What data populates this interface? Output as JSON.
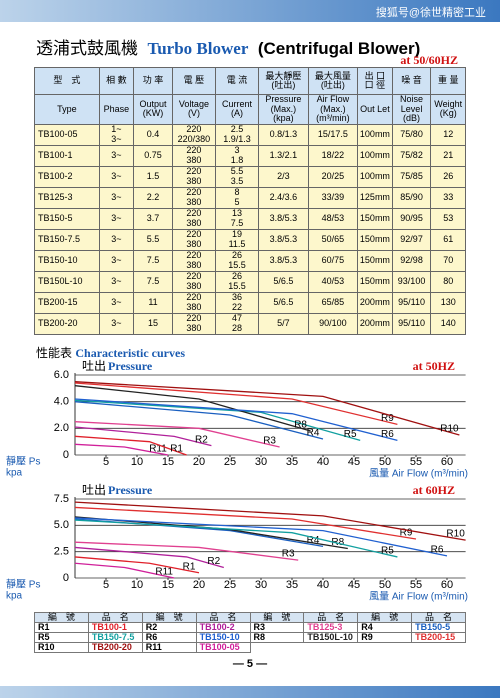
{
  "header": {
    "watermark": "搜狐号@徐世精密工业",
    "title_cn": "透浦式鼓風機",
    "title_en": "Turbo Blower",
    "title_en2": "(Centrifugal Blower)",
    "frequency": "at 50/60HZ"
  },
  "spec_table": {
    "header_cn": [
      "型　式",
      "相 數",
      "功 率",
      "電 壓",
      "電 流",
      "最大靜壓\n(吐出)",
      "最大風量\n(吐出)",
      "出 口\n口 徑",
      "噪 音",
      "重 量"
    ],
    "header_en": [
      "Type",
      "Phase",
      "Output\n(KW)",
      "Voltage\n(V)",
      "Current\n(A)",
      "Pressure (Max.)\n(kpa)",
      "Air Flow (Max.)\n(m³/min)",
      "Out Let",
      "Noise Level\n(dB)",
      "Weight\n(Kg)"
    ],
    "rows": [
      [
        "TB100-05",
        "1~\n3~",
        "0.4",
        "220\n220/380",
        "2.5\n1.9/1.3",
        "0.8/1.3",
        "15/17.5",
        "100mm",
        "75/80",
        "12"
      ],
      [
        "TB100-1",
        "3~",
        "0.75",
        "220\n380",
        "3\n1.8",
        "1.3/2.1",
        "18/22",
        "100mm",
        "75/82",
        "21"
      ],
      [
        "TB100-2",
        "3~",
        "1.5",
        "220\n380",
        "5.5\n3.5",
        "2/3",
        "20/25",
        "100mm",
        "75/85",
        "26"
      ],
      [
        "TB125-3",
        "3~",
        "2.2",
        "220\n380",
        "8\n5",
        "2.4/3.6",
        "33/39",
        "125mm",
        "85/90",
        "33"
      ],
      [
        "TB150-5",
        "3~",
        "3.7",
        "220\n380",
        "13\n7.5",
        "3.8/5.3",
        "48/53",
        "150mm",
        "90/95",
        "53"
      ],
      [
        "TB150-7.5",
        "3~",
        "5.5",
        "220\n380",
        "19\n11.5",
        "3.8/5.3",
        "50/65",
        "150mm",
        "92/97",
        "61"
      ],
      [
        "TB150-10",
        "3~",
        "7.5",
        "220\n380",
        "26\n15.5",
        "3.8/5.3",
        "60/75",
        "150mm",
        "92/98",
        "70"
      ],
      [
        "TB150L-10",
        "3~",
        "7.5",
        "220\n380",
        "26\n15.5",
        "5/6.5",
        "40/53",
        "150mm",
        "93/100",
        "80"
      ],
      [
        "TB200-15",
        "3~",
        "11",
        "220\n380",
        "36\n22",
        "5/6.5",
        "65/85",
        "200mm",
        "95/110",
        "130"
      ],
      [
        "TB200-20",
        "3~",
        "15",
        "220\n380",
        "47\n28",
        "5/7",
        "90/100",
        "200mm",
        "95/110",
        "140"
      ]
    ]
  },
  "curves_heading": {
    "cn": "性能表",
    "en": "Characteristic curves"
  },
  "chart_data": [
    {
      "type": "line",
      "subtitle_cn": "吐出",
      "subtitle": "Pressure",
      "annotation": "at 50HZ",
      "ylabel": "靜壓 Ps",
      "yunit": "kpa",
      "xlabel": "風量 Air Flow (m³/min)",
      "xlim": [
        0,
        63
      ],
      "ylim": [
        0,
        6
      ],
      "xticks": [
        5,
        10,
        15,
        20,
        25,
        30,
        35,
        40,
        45,
        50,
        55,
        60
      ],
      "yticks": [
        0,
        {
          "value": 2,
          "label": "2.0"
        },
        {
          "value": 4,
          "label": "4.0"
        },
        {
          "value": 6,
          "label": "6.0"
        }
      ],
      "grid": true,
      "series": [
        {
          "name": "R11",
          "color": "#d0209a",
          "x": [
            0,
            8,
            15
          ],
          "values": [
            0.8,
            0.6,
            0
          ]
        },
        {
          "name": "R1",
          "color": "#e0202a",
          "x": [
            0,
            12,
            18
          ],
          "values": [
            1.4,
            1.0,
            0
          ]
        },
        {
          "name": "R2",
          "color": "#b0209a",
          "x": [
            0,
            16,
            22
          ],
          "values": [
            2.1,
            1.4,
            0.7
          ]
        },
        {
          "name": "R3",
          "color": "#e04090",
          "x": [
            0,
            20,
            33
          ],
          "values": [
            2.5,
            2.0,
            0.6
          ]
        },
        {
          "name": "R4",
          "color": "#1a5fc0",
          "x": [
            0,
            25,
            40
          ],
          "values": [
            4.0,
            3.0,
            1.2
          ]
        },
        {
          "name": "R5",
          "color": "#12a0a0",
          "x": [
            0,
            30,
            46
          ],
          "values": [
            4.1,
            3.2,
            1.1
          ]
        },
        {
          "name": "R8",
          "color": "#222222",
          "x": [
            0,
            20,
            38
          ],
          "values": [
            5.2,
            4.2,
            1.8
          ]
        },
        {
          "name": "R6",
          "color": "#2060d0",
          "x": [
            0,
            35,
            52
          ],
          "values": [
            4.2,
            3.1,
            1.1
          ]
        },
        {
          "name": "R9",
          "color": "#e03030",
          "x": [
            0,
            35,
            52
          ],
          "values": [
            5.4,
            4.2,
            2.3
          ]
        },
        {
          "name": "R10",
          "color": "#a01010",
          "x": [
            0,
            40,
            62
          ],
          "values": [
            5.5,
            4.4,
            1.5
          ]
        }
      ]
    },
    {
      "type": "line",
      "subtitle_cn": "吐出",
      "subtitle": "Pressure",
      "annotation": "at 60HZ",
      "ylabel": "靜壓 Ps",
      "yunit": "kpa",
      "xlabel": "風量 Air Flow (m³/min)",
      "xlim": [
        0,
        63
      ],
      "ylim": [
        0,
        7.5
      ],
      "xticks": [
        5,
        10,
        15,
        20,
        25,
        30,
        35,
        40,
        45,
        50,
        55,
        60
      ],
      "yticks": [
        0,
        2.5,
        {
          "value": 5,
          "label": "5.0"
        },
        7.5
      ],
      "grid": true,
      "series": [
        {
          "name": "R11",
          "color": "#d0209a",
          "x": [
            0,
            8,
            16
          ],
          "values": [
            1.4,
            1.0,
            0
          ]
        },
        {
          "name": "R1",
          "color": "#e0202a",
          "x": [
            0,
            12,
            20
          ],
          "values": [
            2.0,
            1.4,
            0.5
          ]
        },
        {
          "name": "R2",
          "color": "#b0209a",
          "x": [
            0,
            18,
            24
          ],
          "values": [
            2.9,
            2.0,
            1.0
          ]
        },
        {
          "name": "R3",
          "color": "#e04090",
          "x": [
            0,
            20,
            36
          ],
          "values": [
            3.4,
            2.9,
            1.7
          ]
        },
        {
          "name": "R4",
          "color": "#1a5fc0",
          "x": [
            0,
            25,
            40
          ],
          "values": [
            5.6,
            4.5,
            3.0
          ]
        },
        {
          "name": "R8",
          "color": "#222222",
          "x": [
            0,
            25,
            44
          ],
          "values": [
            5.8,
            4.6,
            2.8
          ]
        },
        {
          "name": "R5",
          "color": "#12a0a0",
          "x": [
            0,
            35,
            52
          ],
          "values": [
            5.5,
            4.3,
            2.0
          ]
        },
        {
          "name": "R9",
          "color": "#e03030",
          "x": [
            0,
            35,
            55
          ],
          "values": [
            6.7,
            5.6,
            3.7
          ]
        },
        {
          "name": "R6",
          "color": "#2060d0",
          "x": [
            0,
            40,
            60
          ],
          "values": [
            5.7,
            4.5,
            2.1
          ]
        },
        {
          "name": "R10",
          "color": "#a01010",
          "x": [
            0,
            40,
            63
          ],
          "values": [
            7.2,
            5.9,
            3.6
          ]
        }
      ]
    }
  ],
  "legend_table": {
    "header": [
      "編　號",
      "品　名",
      "編　號",
      "品　名",
      "編　號",
      "品　名",
      "編　號",
      "品　名"
    ],
    "rows": [
      [
        {
          "code": "R1",
          "name": "TB100-1",
          "color": "#e0202a"
        },
        {
          "code": "R2",
          "name": "TB100-2",
          "color": "#b0209a"
        },
        {
          "code": "R3",
          "name": "TB125-3",
          "color": "#e04090"
        },
        {
          "code": "R4",
          "name": "TB150-5",
          "color": "#1a5fc0"
        }
      ],
      [
        {
          "code": "R5",
          "name": "TB150-7.5",
          "color": "#12a0a0"
        },
        {
          "code": "R6",
          "name": "TB150-10",
          "color": "#2060d0"
        },
        {
          "code": "R8",
          "name": "TB150L-10",
          "color": "#222222"
        },
        {
          "code": "R9",
          "name": "TB200-15",
          "color": "#e03030"
        }
      ],
      [
        {
          "code": "R10",
          "name": "TB200-20",
          "color": "#a01010"
        },
        {
          "code": "R11",
          "name": "TB100-05",
          "color": "#d0209a"
        }
      ]
    ]
  },
  "footer": {
    "page": "— 5 —"
  }
}
